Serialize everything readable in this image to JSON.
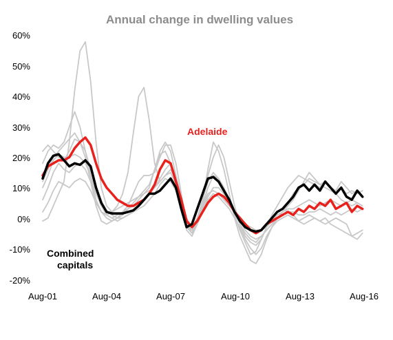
{
  "chart_data": {
    "type": "line",
    "title": "Annual change in dwelling values",
    "xlabel": "",
    "ylabel": "",
    "x_tick_labels": [
      "Aug-01",
      "Aug-04",
      "Aug-07",
      "Aug-10",
      "Aug-13",
      "Aug-16"
    ],
    "y_tick_labels": [
      "60%",
      "50%",
      "40%",
      "30%",
      "20%",
      "10%",
      "0%",
      "-10%",
      "-20%"
    ],
    "ylim": [
      -20,
      60
    ],
    "xlim": [
      2001.58,
      2016.75
    ],
    "grid": false,
    "legend": "none",
    "annotations": [
      {
        "text": "Adelaide",
        "color": "#e8211d"
      },
      {
        "text": "Combined",
        "color": "#000000"
      },
      {
        "text": "capitals",
        "color": "#000000"
      }
    ],
    "series": [
      {
        "name": "Adelaide",
        "color": "#e8211d",
        "width": 3.5,
        "x": [
          2001.58,
          2001.83,
          2002.08,
          2002.33,
          2002.58,
          2002.83,
          2003.08,
          2003.33,
          2003.58,
          2003.83,
          2004.08,
          2004.33,
          2004.58,
          2004.83,
          2005.08,
          2005.33,
          2005.58,
          2005.83,
          2006.08,
          2006.33,
          2006.58,
          2006.83,
          2007.08,
          2007.33,
          2007.58,
          2007.83,
          2008.08,
          2008.33,
          2008.58,
          2008.83,
          2009.08,
          2009.33,
          2009.58,
          2009.83,
          2010.08,
          2010.33,
          2010.58,
          2010.83,
          2011.08,
          2011.33,
          2011.58,
          2011.83,
          2012.08,
          2012.33,
          2012.58,
          2012.83,
          2013.08,
          2013.33,
          2013.58,
          2013.83,
          2014.08,
          2014.33,
          2014.58,
          2014.83,
          2015.08,
          2015.33,
          2015.58,
          2015.83,
          2016.08,
          2016.33,
          2016.58
        ],
        "values": [
          14,
          17,
          18,
          19,
          19,
          20,
          23,
          25,
          26.5,
          24,
          18,
          13,
          10,
          8,
          6,
          5,
          4,
          4,
          5,
          6,
          8,
          11,
          16,
          19,
          18,
          12,
          6,
          -1,
          -3,
          -1,
          2,
          5,
          7,
          8,
          7,
          5,
          2,
          0,
          -2,
          -4,
          -5,
          -4,
          -2,
          -1,
          0,
          1,
          2,
          1,
          3,
          2,
          4,
          3,
          5,
          4,
          6,
          3,
          4,
          5,
          2,
          4,
          3
        ]
      },
      {
        "name": "Combined capitals",
        "color": "#000000",
        "width": 3.5,
        "x": [
          2001.58,
          2001.83,
          2002.08,
          2002.33,
          2002.58,
          2002.83,
          2003.08,
          2003.33,
          2003.58,
          2003.83,
          2004.08,
          2004.33,
          2004.58,
          2004.83,
          2005.08,
          2005.33,
          2005.58,
          2005.83,
          2006.08,
          2006.33,
          2006.58,
          2006.83,
          2007.08,
          2007.33,
          2007.58,
          2007.83,
          2008.08,
          2008.33,
          2008.58,
          2008.83,
          2009.08,
          2009.33,
          2009.58,
          2009.83,
          2010.08,
          2010.33,
          2010.58,
          2010.83,
          2011.08,
          2011.33,
          2011.58,
          2011.83,
          2012.08,
          2012.33,
          2012.58,
          2012.83,
          2013.08,
          2013.33,
          2013.58,
          2013.83,
          2014.08,
          2014.33,
          2014.58,
          2014.83,
          2015.08,
          2015.33,
          2015.58,
          2015.83,
          2016.08,
          2016.33,
          2016.58
        ],
        "values": [
          13,
          18,
          20.5,
          21,
          19,
          17,
          18,
          17.5,
          19,
          17,
          10,
          5,
          2,
          1.5,
          1.5,
          1.5,
          2,
          2.5,
          4,
          6,
          8,
          8,
          9,
          11,
          13,
          10,
          3,
          -3,
          -2,
          3,
          8,
          13,
          13.5,
          12,
          9,
          6,
          2,
          -1,
          -3,
          -4,
          -4.5,
          -4,
          -2,
          0,
          2,
          3,
          5,
          7,
          10,
          11,
          9,
          11,
          9,
          12,
          10,
          8,
          10,
          7,
          6,
          9,
          7
        ]
      },
      {
        "name": "",
        "color": "#c8c8c8",
        "width": 1.8,
        "x": [
          2001.58,
          2001.83,
          2002.08,
          2002.33,
          2002.58,
          2002.83,
          2003.08,
          2003.33,
          2003.58,
          2003.83,
          2004.08,
          2004.33,
          2004.58,
          2004.83,
          2005.08,
          2005.33,
          2005.58,
          2005.83,
          2006.08,
          2006.33,
          2006.58,
          2006.83,
          2007.08,
          2007.33,
          2007.58,
          2007.83,
          2008.08,
          2008.33,
          2008.58,
          2008.83,
          2009.08,
          2009.33,
          2009.58,
          2009.83,
          2010.08,
          2010.33,
          2010.58,
          2010.83,
          2011.08,
          2011.33,
          2011.58,
          2011.83,
          2012.08,
          2012.33,
          2012.58,
          2012.83,
          2013.08,
          2013.33,
          2013.58,
          2013.83,
          2014.08,
          2014.33,
          2014.58,
          2014.83,
          2015.08,
          2015.33,
          2015.58,
          2015.83,
          2016.08,
          2016.33,
          2016.58
        ],
        "values": [
          -1,
          0,
          4,
          8,
          12,
          25,
          42,
          55,
          58,
          45,
          25,
          10,
          4,
          2,
          4,
          8,
          15,
          28,
          40,
          43,
          32,
          18,
          12,
          14,
          16,
          13,
          5,
          -3,
          -4,
          0,
          6,
          12,
          15,
          13,
          10,
          6,
          1,
          -4,
          -8,
          -12,
          -11,
          -7,
          -3,
          0,
          2,
          3,
          2,
          1,
          -1,
          0,
          1,
          0,
          -1,
          0,
          -2,
          -3,
          -4,
          -5,
          -6,
          -5,
          -4
        ]
      },
      {
        "name": "",
        "color": "#c8c8c8",
        "width": 1.8,
        "x": [
          2001.58,
          2001.83,
          2002.08,
          2002.33,
          2002.58,
          2002.83,
          2003.08,
          2003.33,
          2003.58,
          2003.83,
          2004.08,
          2004.33,
          2004.58,
          2004.83,
          2005.08,
          2005.33,
          2005.58,
          2005.83,
          2006.08,
          2006.33,
          2006.58,
          2006.83,
          2007.08,
          2007.33,
          2007.58,
          2007.83,
          2008.08,
          2008.33,
          2008.58,
          2008.83,
          2009.08,
          2009.33,
          2009.58,
          2009.83,
          2010.08,
          2010.33,
          2010.58,
          2010.83,
          2011.08,
          2011.33,
          2011.58,
          2011.83,
          2012.08,
          2012.33,
          2012.58,
          2012.83,
          2013.08,
          2013.33,
          2013.58,
          2013.83,
          2014.08,
          2014.33,
          2014.58,
          2014.83,
          2015.08,
          2015.33,
          2015.58,
          2015.83,
          2016.08,
          2016.33,
          2016.58
        ],
        "values": [
          18,
          22,
          24,
          23,
          25,
          30,
          35,
          30,
          22,
          14,
          6,
          2,
          0,
          -1,
          0,
          2,
          4,
          8,
          12,
          14,
          14,
          15,
          20,
          24,
          24,
          18,
          8,
          -2,
          -5,
          -2,
          5,
          14,
          20,
          24,
          20,
          12,
          4,
          -2,
          -6,
          -8,
          -9,
          -7,
          -3,
          1,
          4,
          7,
          10,
          12,
          14,
          13,
          12,
          11,
          10,
          12,
          10,
          9,
          10,
          8,
          9,
          8,
          9
        ]
      },
      {
        "name": "",
        "color": "#c8c8c8",
        "width": 1.8,
        "x": [
          2001.58,
          2001.83,
          2002.08,
          2002.33,
          2002.58,
          2002.83,
          2003.08,
          2003.33,
          2003.58,
          2003.83,
          2004.08,
          2004.33,
          2004.58,
          2004.83,
          2005.08,
          2005.33,
          2005.58,
          2005.83,
          2006.08,
          2006.33,
          2006.58,
          2006.83,
          2007.08,
          2007.33,
          2007.58,
          2007.83,
          2008.08,
          2008.33,
          2008.58,
          2008.83,
          2009.08,
          2009.33,
          2009.58,
          2009.83,
          2010.08,
          2010.33,
          2010.58,
          2010.83,
          2011.08,
          2011.33,
          2011.58,
          2011.83,
          2012.08,
          2012.33,
          2012.58,
          2012.83,
          2013.08,
          2013.33,
          2013.58,
          2013.83,
          2014.08,
          2014.33,
          2014.58,
          2014.83,
          2015.08,
          2015.33,
          2015.58,
          2015.83,
          2016.08,
          2016.33,
          2016.58
        ],
        "values": [
          22,
          24,
          22,
          20,
          19,
          22,
          26,
          25,
          22,
          16,
          9,
          4,
          1,
          0,
          1,
          2,
          3,
          4,
          6,
          8,
          10,
          16,
          22,
          25,
          22,
          14,
          5,
          -3,
          -5,
          -1,
          6,
          16,
          25,
          22,
          16,
          8,
          0,
          -6,
          -10,
          -14,
          -15,
          -12,
          -7,
          -3,
          0,
          2,
          5,
          8,
          10,
          11,
          13,
          12,
          11,
          10,
          9,
          8,
          6,
          5,
          4,
          5,
          4
        ]
      },
      {
        "name": "",
        "color": "#c8c8c8",
        "width": 1.8,
        "x": [
          2001.58,
          2001.83,
          2002.08,
          2002.33,
          2002.58,
          2002.83,
          2003.08,
          2003.33,
          2003.58,
          2003.83,
          2004.08,
          2004.33,
          2004.58,
          2004.83,
          2005.08,
          2005.33,
          2005.58,
          2005.83,
          2006.08,
          2006.33,
          2006.58,
          2006.83,
          2007.08,
          2007.33,
          2007.58,
          2007.83,
          2008.08,
          2008.33,
          2008.58,
          2008.83,
          2009.08,
          2009.33,
          2009.58,
          2009.83,
          2010.08,
          2010.33,
          2010.58,
          2010.83,
          2011.08,
          2011.33,
          2011.58,
          2011.83,
          2012.08,
          2012.33,
          2012.58,
          2012.83,
          2013.08,
          2013.33,
          2013.58,
          2013.83,
          2014.08,
          2014.33,
          2014.58,
          2014.83,
          2015.08,
          2015.33,
          2015.58,
          2015.83,
          2016.08,
          2016.33,
          2016.58
        ],
        "values": [
          12,
          16,
          20,
          22,
          24,
          26,
          28,
          25,
          20,
          12,
          4,
          -1,
          -2,
          -1,
          0,
          1,
          3,
          5,
          7,
          9,
          11,
          16,
          21,
          22,
          18,
          12,
          4,
          -4,
          -6,
          -2,
          4,
          10,
          14,
          13,
          10,
          6,
          2,
          -2,
          -5,
          -7,
          -8,
          -6,
          -4,
          -2,
          0,
          2,
          4,
          6,
          9,
          12,
          15,
          13,
          11,
          12,
          10,
          9,
          12,
          10,
          8,
          9,
          7
        ]
      },
      {
        "name": "",
        "color": "#c8c8c8",
        "width": 1.8,
        "x": [
          2001.58,
          2001.83,
          2002.08,
          2002.33,
          2002.58,
          2002.83,
          2003.08,
          2003.33,
          2003.58,
          2003.83,
          2004.08,
          2004.33,
          2004.58,
          2004.83,
          2005.08,
          2005.33,
          2005.58,
          2005.83,
          2006.08,
          2006.33,
          2006.58,
          2006.83,
          2007.08,
          2007.33,
          2007.58,
          2007.83,
          2008.08,
          2008.33,
          2008.58,
          2008.83,
          2009.08,
          2009.33,
          2009.58,
          2009.83,
          2010.08,
          2010.33,
          2010.58,
          2010.83,
          2011.08,
          2011.33,
          2011.58,
          2011.83,
          2012.08,
          2012.33,
          2012.58,
          2012.83,
          2013.08,
          2013.33,
          2013.58,
          2013.83,
          2014.08,
          2014.33,
          2014.58,
          2014.83,
          2015.08,
          2015.33,
          2015.58,
          2015.83,
          2016.08,
          2016.33,
          2016.58
        ],
        "values": [
          6,
          10,
          15,
          18,
          16,
          15,
          17,
          18,
          16,
          12,
          6,
          2,
          1,
          2,
          3,
          4,
          5,
          6,
          7,
          8,
          9,
          10,
          12,
          14,
          15,
          11,
          5,
          -1,
          -3,
          0,
          4,
          8,
          9,
          8,
          6,
          4,
          2,
          0,
          -2,
          -3,
          -4,
          -4,
          -3,
          -1,
          1,
          2,
          3,
          3,
          4,
          5,
          6,
          5,
          4,
          5,
          6,
          5,
          4,
          5,
          6,
          5,
          4
        ]
      },
      {
        "name": "",
        "color": "#c8c8c8",
        "width": 1.8,
        "x": [
          2001.58,
          2001.83,
          2002.08,
          2002.33,
          2002.58,
          2002.83,
          2003.08,
          2003.33,
          2003.58,
          2003.83,
          2004.08,
          2004.33,
          2004.58,
          2004.83,
          2005.08,
          2005.33,
          2005.58,
          2005.83,
          2006.08,
          2006.33,
          2006.58,
          2006.83,
          2007.08,
          2007.33,
          2007.58,
          2007.83,
          2008.08,
          2008.33,
          2008.58,
          2008.83,
          2009.08,
          2009.33,
          2009.58,
          2009.83,
          2010.08,
          2010.33,
          2010.58,
          2010.83,
          2011.08,
          2011.33,
          2011.58,
          2011.83,
          2012.08,
          2012.33,
          2012.58,
          2012.83,
          2013.08,
          2013.33,
          2013.58,
          2013.83,
          2014.08,
          2014.33,
          2014.58,
          2014.83,
          2015.08,
          2015.33,
          2015.58,
          2015.83,
          2016.08,
          2016.33,
          2016.58
        ],
        "values": [
          10,
          14,
          19,
          21,
          20,
          20,
          21,
          20,
          18,
          14,
          8,
          4,
          2,
          1,
          0,
          0,
          1,
          2,
          4,
          6,
          8,
          10,
          13,
          16,
          18,
          14,
          7,
          0,
          -3,
          -1,
          3,
          7,
          10,
          10,
          8,
          5,
          2,
          -1,
          -4,
          -6,
          -7,
          -6,
          -4,
          -2,
          0,
          1,
          2,
          2,
          1,
          1,
          2,
          2,
          3,
          2,
          1,
          2,
          1,
          2,
          3,
          2,
          3
        ]
      },
      {
        "name": "",
        "color": "#c8c8c8",
        "width": 1.8,
        "x": [
          2001.58,
          2001.83,
          2002.08,
          2002.33,
          2002.58,
          2002.83,
          2003.08,
          2003.33,
          2003.58,
          2003.83,
          2004.08,
          2004.33,
          2004.58,
          2004.83,
          2005.08,
          2005.33,
          2005.58,
          2005.83,
          2006.08,
          2006.33,
          2006.58,
          2006.83,
          2007.08,
          2007.33,
          2007.58,
          2007.83,
          2008.08,
          2008.33,
          2008.58,
          2008.83,
          2009.08,
          2009.33,
          2009.58,
          2009.83,
          2010.08,
          2010.33,
          2010.58,
          2010.83,
          2011.08,
          2011.33,
          2011.58,
          2011.83,
          2012.08,
          2012.33,
          2012.58,
          2012.83,
          2013.08,
          2013.33,
          2013.58,
          2013.83,
          2014.08,
          2014.33,
          2014.58,
          2014.83,
          2015.08,
          2015.33,
          2015.58,
          2015.83,
          2016.08,
          2016.33,
          2016.58
        ],
        "values": [
          2,
          5,
          9,
          12,
          11,
          10,
          12,
          13,
          12,
          9,
          5,
          2,
          1,
          0,
          -1,
          0,
          1,
          2,
          3,
          4,
          6,
          8,
          11,
          13,
          12,
          9,
          4,
          -2,
          -4,
          -2,
          2,
          6,
          8,
          7,
          5,
          3,
          0,
          -3,
          -7,
          -10,
          -12,
          -10,
          -6,
          -3,
          -1,
          0,
          1,
          0,
          -1,
          -2,
          -1,
          0,
          -1,
          -2,
          -1,
          0,
          -1,
          -2,
          -6,
          -7,
          -5
        ]
      }
    ]
  }
}
